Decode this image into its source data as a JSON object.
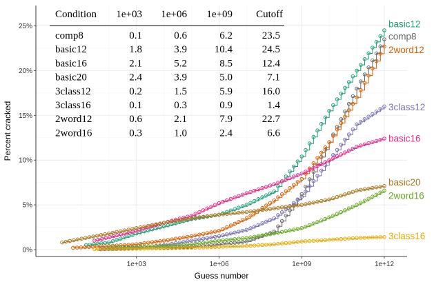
{
  "chart_data": {
    "type": "line",
    "xlabel": "Guess number",
    "ylabel": "Percent cracked",
    "x_scale": "log10",
    "xlim": [
      1,
      1000000000000
    ],
    "ylim": [
      0,
      25
    ],
    "x_ticks": [
      1000,
      1000000,
      1000000000,
      1000000000000
    ],
    "x_tick_labels": [
      "1e+03",
      "1e+06",
      "1e+09",
      "1e+12"
    ],
    "y_ticks": [
      0,
      5,
      10,
      15,
      20,
      25
    ],
    "y_tick_labels": [
      "0%",
      "5%",
      "10%",
      "15%",
      "20%",
      "25%"
    ],
    "grid": true,
    "series": [
      {
        "name": "basic12",
        "color": "#1b9e77",
        "x": [
          15,
          100,
          1000,
          10000,
          100000,
          1000000,
          10000000,
          100000000,
          1000000000,
          10000000000,
          100000000000,
          1000000000000
        ],
        "y": [
          0.5,
          0.8,
          1.8,
          2.6,
          3.4,
          3.9,
          5.0,
          6.5,
          10.4,
          15.5,
          20.0,
          24.5
        ]
      },
      {
        "name": "comp8",
        "color": "#666666",
        "x": [
          50,
          1000,
          10000,
          100000,
          1000000,
          10000000,
          100000000,
          1000000000,
          10000000000,
          100000000000,
          1000000000000
        ],
        "y": [
          0.05,
          0.1,
          0.2,
          0.3,
          0.6,
          0.9,
          2.0,
          6.2,
          12.0,
          18.0,
          23.5
        ]
      },
      {
        "name": "2word12",
        "color": "#d95f02",
        "x": [
          5,
          100,
          1000,
          10000,
          100000,
          1000000,
          10000000,
          100000000,
          1000000000,
          10000000000,
          100000000000,
          1000000000000
        ],
        "y": [
          0.2,
          0.4,
          0.6,
          1.0,
          1.5,
          2.1,
          3.5,
          5.5,
          7.9,
          12.0,
          17.0,
          22.7
        ]
      },
      {
        "name": "3class12",
        "color": "#7570b3",
        "x": [
          50,
          1000,
          10000,
          100000,
          1000000,
          10000000,
          100000000,
          1000000000,
          10000000000,
          100000000000,
          1000000000000
        ],
        "y": [
          0.1,
          0.2,
          0.5,
          1.0,
          1.5,
          2.2,
          3.5,
          5.9,
          10.0,
          14.0,
          16.0
        ]
      },
      {
        "name": "basic16",
        "color": "#e7298a",
        "x": [
          30,
          1000,
          10000,
          100000,
          1000000,
          10000000,
          100000000,
          1000000000,
          10000000000,
          100000000000,
          1000000000000
        ],
        "y": [
          1.0,
          2.1,
          3.0,
          3.8,
          5.2,
          6.3,
          7.3,
          8.5,
          10.0,
          11.5,
          12.4
        ]
      },
      {
        "name": "basic20",
        "color": "#a6761d",
        "x": [
          2,
          100,
          1000,
          10000,
          100000,
          1000000,
          10000000,
          100000000,
          1000000000,
          10000000000,
          100000000000,
          1000000000000
        ],
        "y": [
          0.8,
          1.8,
          2.4,
          3.0,
          3.5,
          3.9,
          4.2,
          4.6,
          5.0,
          5.6,
          6.6,
          7.1
        ]
      },
      {
        "name": "2word16",
        "color": "#66a61e",
        "x": [
          100,
          1000,
          10000,
          100000,
          1000000,
          10000000,
          100000000,
          1000000000,
          10000000000,
          100000000000,
          1000000000000
        ],
        "y": [
          0.2,
          0.3,
          0.4,
          0.6,
          1.0,
          1.3,
          1.8,
          2.4,
          3.6,
          5.0,
          6.6
        ]
      },
      {
        "name": "3class16",
        "color": "#e6ab02",
        "x": [
          30,
          1000,
          100000,
          1000000,
          10000000,
          100000000,
          1000000000,
          10000000000,
          100000000000,
          1000000000000
        ],
        "y": [
          0.05,
          0.1,
          0.2,
          0.3,
          0.4,
          0.6,
          0.9,
          1.1,
          1.3,
          1.4
        ]
      }
    ],
    "end_labels": [
      {
        "name": "basic12",
        "y": 25.2
      },
      {
        "name": "comp8",
        "y": 23.8
      },
      {
        "name": "2word12",
        "y": 22.3
      },
      {
        "name": "3class12",
        "y": 15.9
      },
      {
        "name": "basic16",
        "y": 12.4
      },
      {
        "name": "basic20",
        "y": 7.5
      },
      {
        "name": "2word16",
        "y": 6.0
      },
      {
        "name": "3class16",
        "y": 1.5
      }
    ],
    "table": {
      "headers": [
        "Condition",
        "1e+03",
        "1e+06",
        "1e+09",
        "Cutoff"
      ],
      "rows": [
        [
          "comp8",
          "0.1",
          "0.6",
          "6.2",
          "23.5"
        ],
        [
          "basic12",
          "1.8",
          "3.9",
          "10.4",
          "24.5"
        ],
        [
          "basic16",
          "2.1",
          "5.2",
          "8.5",
          "12.4"
        ],
        [
          "basic20",
          "2.4",
          "3.9",
          "5.0",
          "7.1"
        ],
        [
          "3class12",
          "0.2",
          "1.5",
          "5.9",
          "16.0"
        ],
        [
          "3class16",
          "0.1",
          "0.3",
          "0.9",
          "1.4"
        ],
        [
          "2word12",
          "0.6",
          "2.1",
          "7.9",
          "22.7"
        ],
        [
          "2word16",
          "0.3",
          "1.0",
          "2.4",
          "6.6"
        ]
      ]
    }
  }
}
